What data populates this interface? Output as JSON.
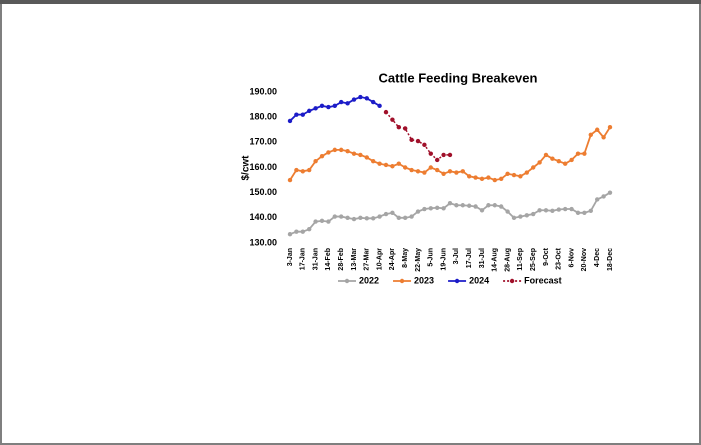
{
  "chart_data": {
    "type": "line",
    "title": "Cattle Feeding Breakeven",
    "y_label": "$/cwt",
    "categories": [
      "3-Jan",
      null,
      "17-Jan",
      null,
      "31-Jan",
      null,
      "14-Feb",
      null,
      "28-Feb",
      null,
      "13-Mar",
      null,
      "27-Mar",
      null,
      "10-Apr",
      null,
      "24-Apr",
      null,
      "8-May",
      null,
      "22-May",
      null,
      "5-Jun",
      null,
      "19-Jun",
      null,
      "3-Jul",
      null,
      "17-Jul",
      null,
      "31-Jul",
      null,
      "14-Aug",
      null,
      "28-Aug",
      null,
      "11-Sep",
      null,
      "25-Sep",
      null,
      "9-Oct",
      null,
      "23-Oct",
      null,
      "6-Nov",
      null,
      "20-Nov",
      null,
      "4-Dec",
      null,
      "18-Dec"
    ],
    "series": [
      {
        "name": "2022",
        "color": "#a5a5a5",
        "dash": false,
        "values": [
          133.5,
          134.5,
          134.5,
          135.5,
          138.5,
          138.8,
          138.5,
          140.5,
          140.5,
          140,
          139.5,
          140,
          139.8,
          139.8,
          140.5,
          141.5,
          142,
          140,
          140,
          140.5,
          142.5,
          143.5,
          143.8,
          144,
          143.8,
          145.8,
          145,
          145,
          144.8,
          144.5,
          143,
          145,
          145,
          144.5,
          142.5,
          140,
          140.5,
          141,
          141.5,
          143,
          143,
          142.8,
          143.3,
          143.5,
          143.5,
          142,
          142,
          142.8,
          147.3,
          148.5,
          150
        ]
      },
      {
        "name": "2023",
        "color": "#ed7d31",
        "dash": false,
        "values": [
          155,
          159,
          158.5,
          159,
          162.5,
          164.5,
          166,
          167,
          167,
          166.5,
          165.5,
          165,
          164,
          162.5,
          161.5,
          161,
          160.5,
          161.5,
          160,
          159,
          158.5,
          158,
          160,
          159,
          157.5,
          158.5,
          158,
          158.5,
          156.5,
          156,
          155.5,
          156,
          155,
          155.5,
          157.5,
          157,
          156.5,
          158,
          160,
          162,
          165,
          163.5,
          162.5,
          161.5,
          163,
          165.5,
          165.5,
          173,
          175,
          172,
          176
        ]
      },
      {
        "name": "2024",
        "color": "#1c1cc8",
        "dash": false,
        "values": [
          178.5,
          181,
          181,
          182.5,
          183.5,
          184.5,
          184,
          184.5,
          186,
          185.5,
          187,
          188,
          187.5,
          186,
          184.5,
          null,
          null,
          null,
          null,
          null,
          null,
          null,
          null,
          null,
          null,
          null,
          null,
          null,
          null,
          null,
          null,
          null,
          null,
          null,
          null,
          null,
          null,
          null,
          null,
          null,
          null,
          null,
          null,
          null,
          null,
          null,
          null,
          null,
          null,
          null,
          null
        ]
      },
      {
        "name": "Forecast",
        "color": "#a0102a",
        "dash": true,
        "values": [
          null,
          null,
          null,
          null,
          null,
          null,
          null,
          null,
          null,
          null,
          null,
          null,
          null,
          null,
          null,
          182,
          179,
          176,
          175.5,
          171,
          170.5,
          169,
          165.5,
          163,
          165,
          165,
          null,
          null,
          null,
          null,
          null,
          null,
          null,
          null,
          null,
          null,
          null,
          null,
          null,
          null,
          null,
          null,
          null,
          null,
          null,
          null,
          null,
          null,
          null,
          null,
          null
        ]
      }
    ],
    "ylim": [
      130,
      190
    ],
    "yticks": [
      {
        "value": 130,
        "label": "130.00"
      },
      {
        "value": 140,
        "label": "140.00"
      },
      {
        "value": 150,
        "label": "150.00"
      },
      {
        "value": 160,
        "label": "160.00"
      },
      {
        "value": 170,
        "label": "170.00"
      },
      {
        "value": 180,
        "label": "180.00"
      },
      {
        "value": 190,
        "label": "190.00"
      }
    ],
    "legend": "bottom"
  }
}
